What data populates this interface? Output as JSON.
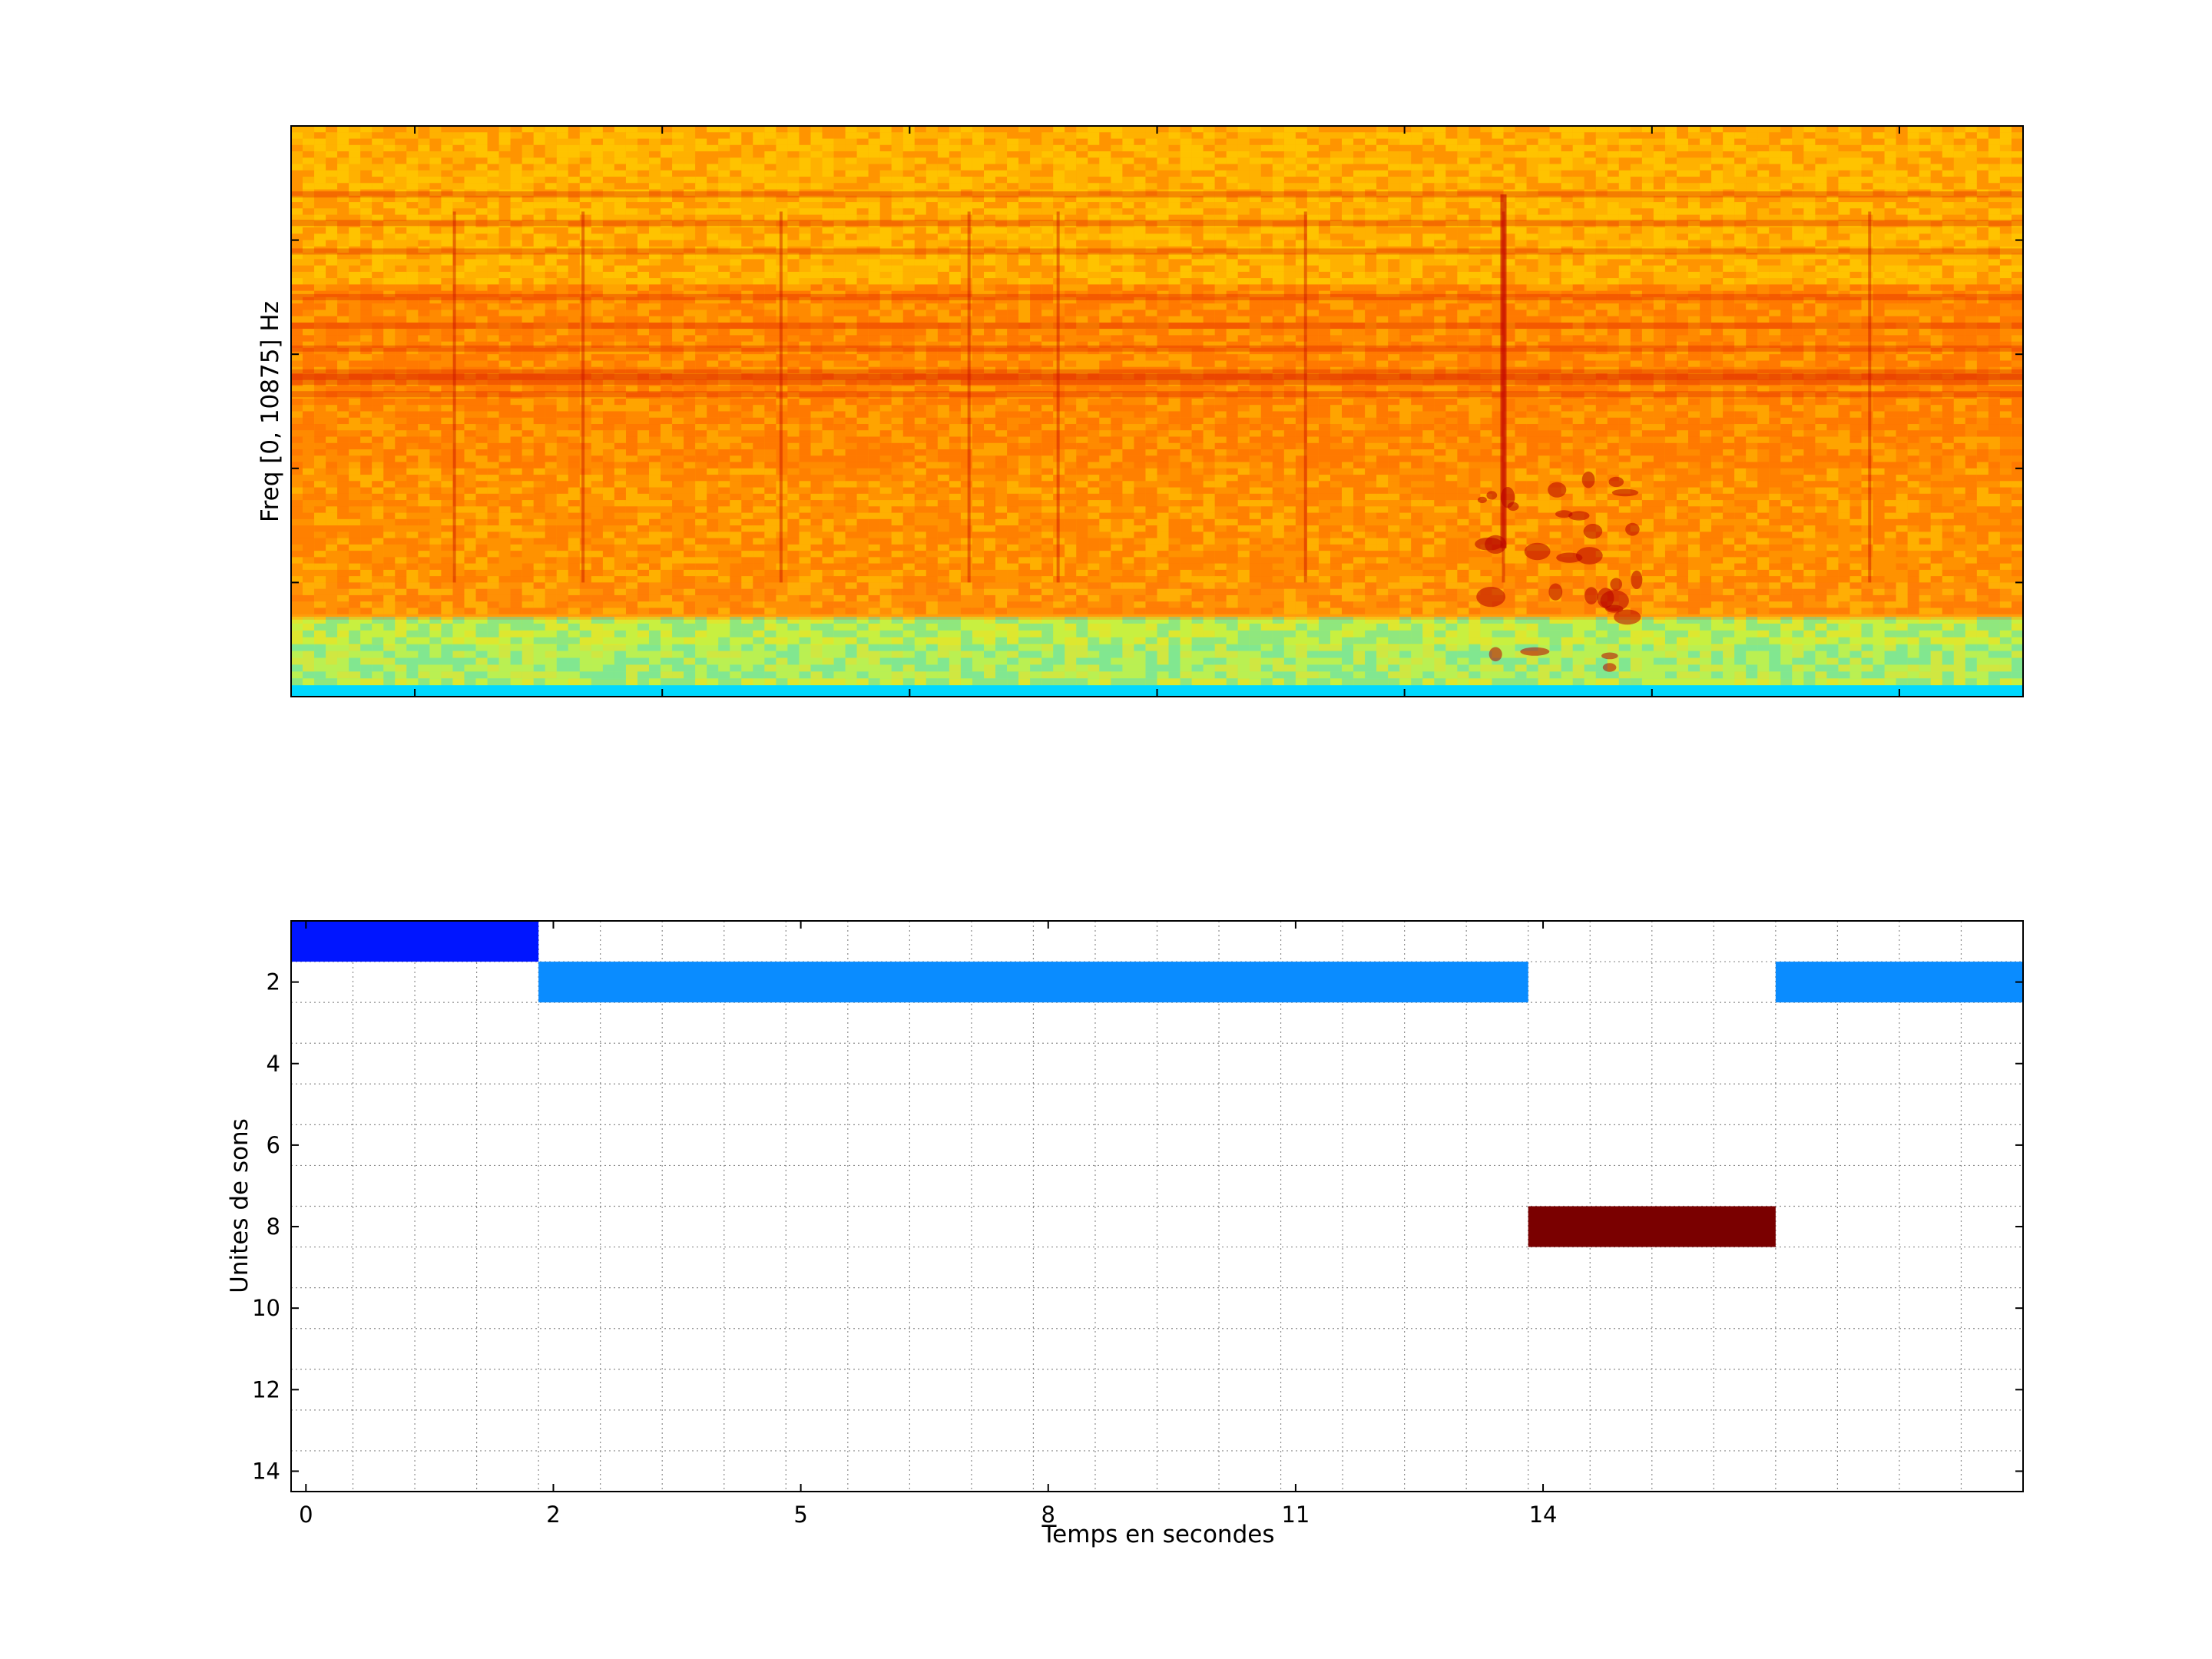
{
  "chart_data": [
    {
      "type": "heatmap",
      "ylabel": "Freq [0, 10875] Hz",
      "xlabel": "",
      "title": "",
      "ylim": [
        0,
        10875
      ],
      "colormap": "jet",
      "colors": {
        "noise_high": "#ffb000",
        "band_mid": "#ff6a00",
        "band_dark": "#e02000",
        "low_band": "#c8f040",
        "floor": "#00d8ff"
      },
      "horizontal_bands_relative_freq": [
        0.53,
        0.56,
        0.61,
        0.65,
        0.7,
        0.78,
        0.83,
        0.88
      ],
      "vertical_events_time": [
        0.4,
        1.7,
        3.7,
        5.6,
        6.5,
        9.0,
        11.0,
        14.7
      ],
      "bird_call_events": [
        {
          "t_start": 10.7,
          "t_end": 12.4,
          "f_rel_low": 0.05,
          "f_rel_high": 0.38
        }
      ]
    },
    {
      "type": "bar",
      "orientation": "horizontal-segments",
      "xlabel": "Temps en secondes",
      "ylabel": "Unites de sons",
      "title": "",
      "x_ticks": [
        "0",
        "2",
        "5",
        "8",
        "11",
        "14"
      ],
      "y_ticks": [
        "2",
        "4",
        "6",
        "8",
        "10",
        "12",
        "14"
      ],
      "xlim": [
        -1.25,
        16.25
      ],
      "ylim": [
        0.5,
        14.5
      ],
      "grid": true,
      "segments": [
        {
          "unit": 1,
          "start": -1.25,
          "end": 1.25,
          "color": "#0015ff"
        },
        {
          "unit": 2,
          "start": 1.25,
          "end": 11.25,
          "color": "#0a8cff"
        },
        {
          "unit": 8,
          "start": 11.25,
          "end": 13.75,
          "color": "#7a0000"
        },
        {
          "unit": 2,
          "start": 13.75,
          "end": 16.25,
          "color": "#0a8cff"
        }
      ]
    }
  ]
}
